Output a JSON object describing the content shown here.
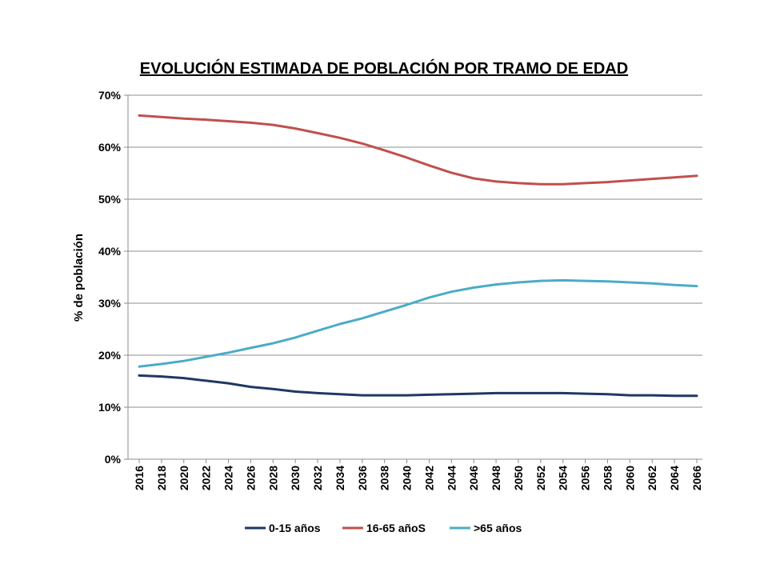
{
  "chart_data": {
    "type": "line",
    "title": "EVOLUCIÓN ESTIMADA DE POBLACIÓN POR TRAMO DE EDAD",
    "ylabel": "% de población",
    "xlabel": "",
    "ylim": [
      0,
      70
    ],
    "yticks": [
      0,
      10,
      20,
      30,
      40,
      50,
      60,
      70
    ],
    "ytick_labels": [
      "0%",
      "10%",
      "20%",
      "30%",
      "40%",
      "50%",
      "60%",
      "70%"
    ],
    "xlim": [
      2016,
      2066
    ],
    "xticks": [
      2016,
      2018,
      2020,
      2022,
      2024,
      2026,
      2028,
      2030,
      2032,
      2034,
      2036,
      2038,
      2040,
      2042,
      2044,
      2046,
      2048,
      2050,
      2052,
      2054,
      2056,
      2058,
      2060,
      2062,
      2064,
      2066
    ],
    "grid": true,
    "legend_position": "bottom",
    "x": [
      2016,
      2018,
      2020,
      2022,
      2024,
      2026,
      2028,
      2030,
      2032,
      2034,
      2036,
      2038,
      2040,
      2042,
      2044,
      2046,
      2048,
      2050,
      2052,
      2054,
      2056,
      2058,
      2060,
      2062,
      2064,
      2066
    ],
    "series": [
      {
        "name": "0-15 años",
        "color": "#1f3864",
        "values": [
          16.1,
          15.9,
          15.6,
          15.1,
          14.6,
          13.9,
          13.5,
          13.0,
          12.7,
          12.5,
          12.3,
          12.3,
          12.3,
          12.4,
          12.5,
          12.6,
          12.7,
          12.7,
          12.7,
          12.7,
          12.6,
          12.5,
          12.3,
          12.3,
          12.2,
          12.2
        ]
      },
      {
        "name": "16-65 añoS",
        "color": "#c0504d",
        "values": [
          66.1,
          65.8,
          65.5,
          65.3,
          65.0,
          64.7,
          64.3,
          63.6,
          62.7,
          61.8,
          60.7,
          59.4,
          58.0,
          56.5,
          55.1,
          54.0,
          53.4,
          53.1,
          52.9,
          52.9,
          53.1,
          53.3,
          53.6,
          53.9,
          54.2,
          54.5
        ]
      },
      {
        "name": ">65 años",
        "color": "#4bacc6",
        "values": [
          17.8,
          18.3,
          18.9,
          19.7,
          20.5,
          21.4,
          22.3,
          23.4,
          24.7,
          26.0,
          27.1,
          28.4,
          29.7,
          31.1,
          32.2,
          33.0,
          33.6,
          34.0,
          34.3,
          34.4,
          34.3,
          34.2,
          34.0,
          33.8,
          33.5,
          33.3
        ]
      }
    ]
  }
}
